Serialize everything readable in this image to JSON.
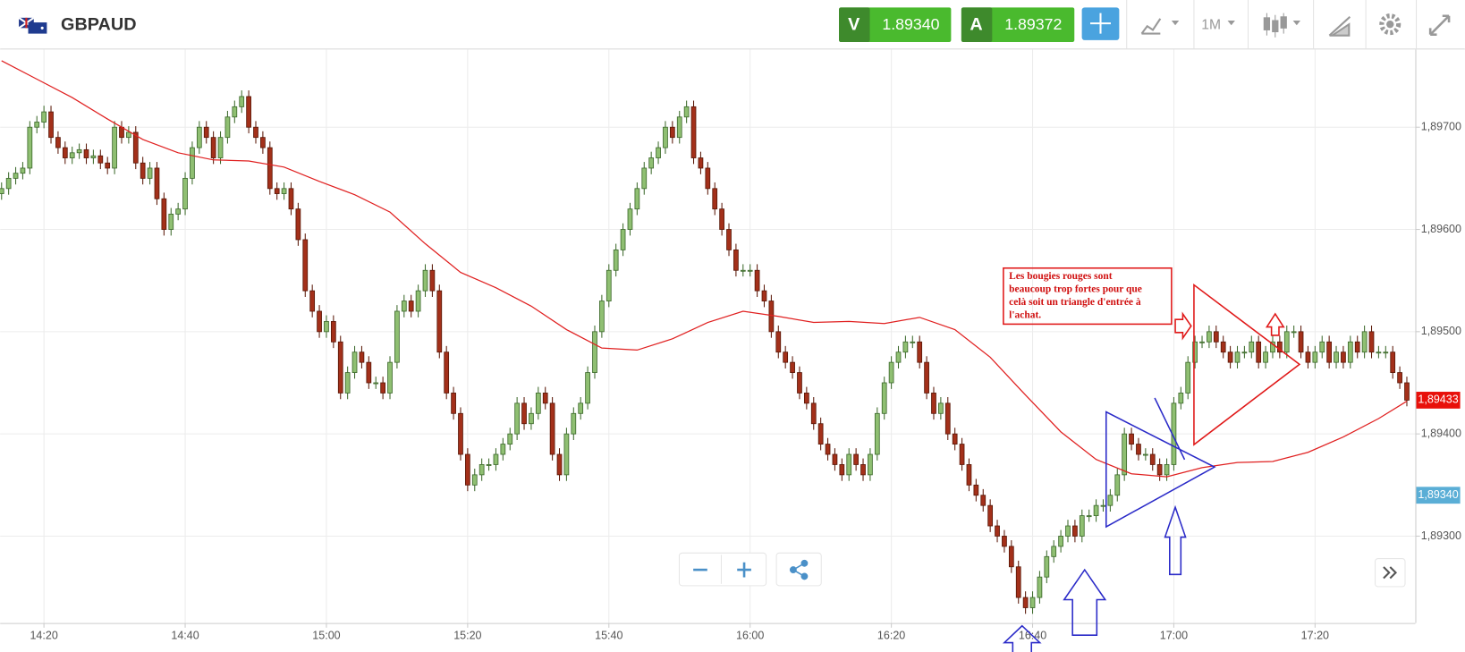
{
  "header": {
    "symbol": "GBPAUD",
    "bid_tag": "V",
    "bid": "1.89340",
    "ask_tag": "A",
    "ask": "1.89372",
    "timeframe": "1M"
  },
  "chart_data": {
    "type": "candlestick",
    "open": [
      1.89635,
      1.8964,
      1.8965,
      1.89655,
      1.8966,
      1.897,
      1.89705,
      1.89715,
      1.8969,
      1.8968,
      1.8967,
      1.89675,
      1.89678,
      1.8967,
      1.89672,
      1.89665,
      1.8966,
      1.897,
      1.8969,
      1.89695,
      1.89665,
      1.8965,
      1.8966,
      1.8963,
      1.896,
      1.89615,
      1.8962,
      1.8965,
      1.8968,
      1.897,
      1.8969,
      1.8967,
      1.8969,
      1.8971,
      1.8972,
      1.8973,
      1.897,
      1.8969,
      1.8968,
      1.8964,
      1.89635,
      1.8964,
      1.8962,
      1.8959,
      1.8954,
      1.8952,
      1.895,
      1.8951,
      1.8949,
      1.8944,
      1.8946,
      1.8948,
      1.8947,
      1.8945,
      1.8945,
      1.8944,
      1.8947,
      1.8952,
      1.8953,
      1.8952,
      1.8954,
      1.8956,
      1.8954,
      1.8948,
      1.8944,
      1.8942,
      1.8938,
      1.8935,
      1.8936,
      1.8937,
      1.8937,
      1.8938,
      1.8939,
      1.894,
      1.8943,
      1.8941,
      1.8942,
      1.8944,
      1.8943,
      1.8938,
      1.8936,
      1.894,
      1.8942,
      1.8943,
      1.8946,
      1.895,
      1.8953,
      1.8956,
      1.8958,
      1.896,
      1.8962,
      1.8964,
      1.8966,
      1.8967,
      1.8968,
      1.897,
      1.8969,
      1.8971,
      1.8972,
      1.8967,
      1.8966,
      1.8964,
      1.8962,
      1.896,
      1.8958,
      1.8956,
      1.8956,
      1.8956,
      1.8954,
      1.8953,
      1.895,
      1.8948,
      1.8947,
      1.8946,
      1.8944,
      1.8943,
      1.8941,
      1.8939,
      1.8938,
      1.8937,
      1.8936,
      1.8938,
      1.8937,
      1.8936,
      1.8938,
      1.8942,
      1.8945,
      1.8947,
      1.8948,
      1.8949,
      1.8949,
      1.8947,
      1.8944,
      1.8942,
      1.8943,
      1.894,
      1.8939,
      1.8937,
      1.8935,
      1.8934,
      1.8933,
      1.8931,
      1.893,
      1.8929,
      1.8927,
      1.8924,
      1.8923,
      1.8924,
      1.8926,
      1.8928,
      1.8929,
      1.893,
      1.8931,
      1.893,
      1.8932,
      1.8932,
      1.8933,
      1.8933,
      1.8934,
      1.8936,
      1.894,
      1.8939,
      1.8938,
      1.8938,
      1.8937,
      1.8936,
      1.8937,
      1.8943,
      1.8944,
      1.8947,
      1.8949,
      1.8949,
      1.895,
      1.8949,
      1.8948,
      1.8947,
      1.8948,
      1.8948,
      1.8949,
      1.8947,
      1.8948,
      1.8949,
      1.8948,
      1.895,
      1.895,
      1.8948,
      1.8947,
      1.8948,
      1.8949,
      1.8947,
      1.8948,
      1.8947,
      1.8949,
      1.8948,
      1.895,
      1.8948,
      1.8948,
      1.8948,
      1.8946,
      1.8945
    ],
    "high": [
      1.89646,
      1.89656,
      1.89661,
      1.89666,
      1.89706,
      1.89711,
      1.89721,
      1.89721,
      1.89696,
      1.89686,
      1.89681,
      1.89684,
      1.89684,
      1.89678,
      1.89678,
      1.89671,
      1.89706,
      1.89706,
      1.89701,
      1.89701,
      1.89671,
      1.89666,
      1.89666,
      1.89636,
      1.89621,
      1.89626,
      1.89656,
      1.89686,
      1.89706,
      1.89706,
      1.89696,
      1.89696,
      1.89716,
      1.89726,
      1.89736,
      1.89736,
      1.89706,
      1.89696,
      1.89686,
      1.89646,
      1.89646,
      1.89646,
      1.89626,
      1.89596,
      1.89546,
      1.89526,
      1.89516,
      1.89516,
      1.89496,
      1.89466,
      1.89486,
      1.89486,
      1.89476,
      1.89456,
      1.89456,
      1.89476,
      1.89526,
      1.89536,
      1.89536,
      1.89546,
      1.89566,
      1.89566,
      1.89546,
      1.89486,
      1.89446,
      1.89426,
      1.89386,
      1.89366,
      1.89376,
      1.89376,
      1.89386,
      1.89396,
      1.89406,
      1.89436,
      1.89436,
      1.89426,
      1.89446,
      1.89446,
      1.89436,
      1.89386,
      1.89406,
      1.89426,
      1.89436,
      1.89466,
      1.89506,
      1.89536,
      1.89566,
      1.89586,
      1.89606,
      1.89626,
      1.89646,
      1.89666,
      1.89676,
      1.89686,
      1.89706,
      1.89706,
      1.89716,
      1.89726,
      1.89726,
      1.89676,
      1.89666,
      1.89646,
      1.89626,
      1.89606,
      1.89586,
      1.89566,
      1.89566,
      1.89566,
      1.89546,
      1.89536,
      1.89506,
      1.89486,
      1.89476,
      1.89466,
      1.89446,
      1.89436,
      1.89416,
      1.89396,
      1.89386,
      1.89376,
      1.89386,
      1.89386,
      1.89376,
      1.89386,
      1.89426,
      1.89456,
      1.89476,
      1.89486,
      1.89496,
      1.89496,
      1.89496,
      1.89476,
      1.89446,
      1.89436,
      1.89436,
      1.89406,
      1.89396,
      1.89376,
      1.89356,
      1.89346,
      1.89336,
      1.89316,
      1.89306,
      1.89296,
      1.89276,
      1.89246,
      1.89246,
      1.89266,
      1.89286,
      1.89296,
      1.89306,
      1.89316,
      1.89316,
      1.89326,
      1.89326,
      1.89336,
      1.89336,
      1.89346,
      1.89366,
      1.89406,
      1.89406,
      1.89396,
      1.89386,
      1.89386,
      1.89376,
      1.89376,
      1.89436,
      1.89446,
      1.89476,
      1.89496,
      1.89496,
      1.89506,
      1.89506,
      1.89496,
      1.89486,
      1.89486,
      1.89486,
      1.89496,
      1.89496,
      1.89486,
      1.89496,
      1.89496,
      1.89506,
      1.89506,
      1.89506,
      1.89486,
      1.89486,
      1.89496,
      1.89496,
      1.89486,
      1.89486,
      1.89496,
      1.89496,
      1.89506,
      1.89506,
      1.89486,
      1.89486,
      1.89486,
      1.89466,
      1.89456
    ],
    "low": [
      1.89629,
      1.89634,
      1.89644,
      1.89649,
      1.89654,
      1.89694,
      1.89699,
      1.89684,
      1.89674,
      1.89664,
      1.89664,
      1.89669,
      1.89664,
      1.89664,
      1.89659,
      1.89654,
      1.89654,
      1.89684,
      1.89684,
      1.89659,
      1.89644,
      1.89644,
      1.89624,
      1.89594,
      1.89594,
      1.89609,
      1.89614,
      1.89644,
      1.89674,
      1.89684,
      1.89664,
      1.89664,
      1.89684,
      1.89704,
      1.89714,
      1.89694,
      1.89684,
      1.89674,
      1.89634,
      1.89629,
      1.89629,
      1.89614,
      1.89584,
      1.89534,
      1.89514,
      1.89494,
      1.89494,
      1.89484,
      1.89434,
      1.89434,
      1.89454,
      1.89464,
      1.89444,
      1.89444,
      1.89434,
      1.89434,
      1.89464,
      1.89514,
      1.89514,
      1.89514,
      1.89534,
      1.89534,
      1.89474,
      1.89434,
      1.89414,
      1.89374,
      1.89344,
      1.89344,
      1.89354,
      1.89364,
      1.89364,
      1.89374,
      1.89384,
      1.89394,
      1.89404,
      1.89404,
      1.89414,
      1.89424,
      1.89374,
      1.89354,
      1.89354,
      1.89394,
      1.89414,
      1.89424,
      1.89454,
      1.89494,
      1.89524,
      1.89554,
      1.89574,
      1.89594,
      1.89614,
      1.89634,
      1.89654,
      1.89664,
      1.89674,
      1.89684,
      1.89684,
      1.89704,
      1.89664,
      1.89654,
      1.89634,
      1.89614,
      1.89594,
      1.89574,
      1.89554,
      1.89554,
      1.89554,
      1.89534,
      1.89524,
      1.89494,
      1.89474,
      1.89464,
      1.89454,
      1.89434,
      1.89424,
      1.89404,
      1.89384,
      1.89374,
      1.89364,
      1.89354,
      1.89354,
      1.89364,
      1.89354,
      1.89354,
      1.89374,
      1.89414,
      1.89444,
      1.89464,
      1.89474,
      1.89484,
      1.89464,
      1.89434,
      1.89414,
      1.89414,
      1.89394,
      1.89384,
      1.89364,
      1.89344,
      1.89334,
      1.89324,
      1.89304,
      1.89294,
      1.89284,
      1.89264,
      1.89234,
      1.89224,
      1.89224,
      1.89234,
      1.89254,
      1.89274,
      1.89284,
      1.89294,
      1.89294,
      1.89294,
      1.89314,
      1.89314,
      1.89324,
      1.89324,
      1.89334,
      1.89354,
      1.89384,
      1.89374,
      1.89374,
      1.89364,
      1.89354,
      1.89354,
      1.89364,
      1.89424,
      1.89434,
      1.89464,
      1.89484,
      1.89484,
      1.89484,
      1.89474,
      1.89464,
      1.89464,
      1.89474,
      1.89474,
      1.89464,
      1.89464,
      1.89474,
      1.89474,
      1.89474,
      1.89494,
      1.89474,
      1.89464,
      1.89464,
      1.89474,
      1.89464,
      1.89464,
      1.89464,
      1.89464,
      1.89474,
      1.89474,
      1.89474,
      1.89474,
      1.89474,
      1.89454,
      1.89444,
      1.89427
    ],
    "close": [
      1.8964,
      1.8965,
      1.89655,
      1.8966,
      1.897,
      1.89705,
      1.89715,
      1.8969,
      1.8968,
      1.8967,
      1.89675,
      1.89678,
      1.8967,
      1.89672,
      1.89665,
      1.8966,
      1.897,
      1.8969,
      1.89695,
      1.89665,
      1.8965,
      1.8966,
      1.8963,
      1.896,
      1.89615,
      1.8962,
      1.8965,
      1.8968,
      1.897,
      1.8969,
      1.8967,
      1.8969,
      1.8971,
      1.8972,
      1.8973,
      1.897,
      1.8969,
      1.8968,
      1.8964,
      1.89635,
      1.8964,
      1.8962,
      1.8959,
      1.8954,
      1.8952,
      1.895,
      1.8951,
      1.8949,
      1.8944,
      1.8946,
      1.8948,
      1.8947,
      1.8945,
      1.8945,
      1.8944,
      1.8947,
      1.8952,
      1.8953,
      1.8952,
      1.8954,
      1.8956,
      1.8954,
      1.8948,
      1.8944,
      1.8942,
      1.8938,
      1.8935,
      1.8936,
      1.8937,
      1.8937,
      1.8938,
      1.8939,
      1.894,
      1.8943,
      1.8941,
      1.8942,
      1.8944,
      1.8943,
      1.8938,
      1.8936,
      1.894,
      1.8942,
      1.8943,
      1.8946,
      1.895,
      1.8953,
      1.8956,
      1.8958,
      1.896,
      1.8962,
      1.8964,
      1.8966,
      1.8967,
      1.8968,
      1.897,
      1.8969,
      1.8971,
      1.8972,
      1.8967,
      1.8966,
      1.8964,
      1.8962,
      1.896,
      1.8958,
      1.8956,
      1.8956,
      1.8956,
      1.8954,
      1.8953,
      1.895,
      1.8948,
      1.8947,
      1.8946,
      1.8944,
      1.8943,
      1.8941,
      1.8939,
      1.8938,
      1.8937,
      1.8936,
      1.8938,
      1.8937,
      1.8936,
      1.8938,
      1.8942,
      1.8945,
      1.8947,
      1.8948,
      1.8949,
      1.8949,
      1.8947,
      1.8944,
      1.8942,
      1.8943,
      1.894,
      1.8939,
      1.8937,
      1.8935,
      1.8934,
      1.8933,
      1.8931,
      1.893,
      1.8929,
      1.8927,
      1.8924,
      1.8923,
      1.8924,
      1.8926,
      1.8928,
      1.8929,
      1.893,
      1.8931,
      1.893,
      1.8932,
      1.8932,
      1.8933,
      1.8933,
      1.8934,
      1.8936,
      1.894,
      1.8939,
      1.8938,
      1.8938,
      1.8937,
      1.8936,
      1.8937,
      1.8943,
      1.8944,
      1.8947,
      1.8949,
      1.8949,
      1.895,
      1.8949,
      1.8948,
      1.8947,
      1.8948,
      1.8948,
      1.8949,
      1.8947,
      1.8948,
      1.8949,
      1.8948,
      1.895,
      1.895,
      1.8948,
      1.8947,
      1.8948,
      1.8949,
      1.8947,
      1.8948,
      1.8947,
      1.8949,
      1.8948,
      1.895,
      1.8948,
      1.8948,
      1.8948,
      1.8946,
      1.8945,
      1.89433
    ],
    "up_color": "#8fbf72",
    "down_color": "#a3301a",
    "moving_average": {
      "color": "#e02020",
      "x": [
        0,
        5,
        10,
        15,
        20,
        25,
        30,
        35,
        40,
        45,
        50,
        55,
        60,
        65,
        70,
        75,
        80,
        85,
        90,
        95,
        100,
        105,
        110,
        115,
        120,
        125,
        130,
        135,
        140,
        145,
        150,
        155,
        160,
        165,
        170,
        175,
        180,
        185,
        190,
        195,
        199
      ],
      "values": [
        1.89765,
        1.89747,
        1.89729,
        1.89708,
        1.89688,
        1.89675,
        1.89668,
        1.89667,
        1.89661,
        1.89647,
        1.89634,
        1.89617,
        1.89586,
        1.89558,
        1.89543,
        1.89525,
        1.89502,
        1.89484,
        1.89482,
        1.89493,
        1.89509,
        1.8952,
        1.89515,
        1.89509,
        1.8951,
        1.89508,
        1.89514,
        1.89502,
        1.89475,
        1.89438,
        1.89402,
        1.89375,
        1.89361,
        1.89358,
        1.89367,
        1.89372,
        1.89373,
        1.89382,
        1.89397,
        1.89415,
        1.89432
      ]
    },
    "ylim": [
      1.89215,
      1.89776
    ],
    "yticks": [
      {
        "value": 1.893,
        "label": "1,89300"
      },
      {
        "value": 1.894,
        "label": "1,89400"
      },
      {
        "value": 1.895,
        "label": "1,89500"
      },
      {
        "value": 1.896,
        "label": "1,89600"
      },
      {
        "value": 1.897,
        "label": "1,89700"
      }
    ],
    "xlim": [
      -0.2,
      200.2
    ],
    "xticks": [
      {
        "value": 6,
        "label": "14:20"
      },
      {
        "value": 26,
        "label": "14:40"
      },
      {
        "value": 46,
        "label": "15:00"
      },
      {
        "value": 66,
        "label": "15:20"
      },
      {
        "value": 86,
        "label": "15:40"
      },
      {
        "value": 106,
        "label": "16:00"
      },
      {
        "value": 126,
        "label": "16:20"
      },
      {
        "value": 146,
        "label": "16:40"
      },
      {
        "value": 166,
        "label": "17:00"
      },
      {
        "value": 186,
        "label": "17:20"
      }
    ],
    "grid": true,
    "last_price": {
      "value": 1.89433,
      "label": "1,89433",
      "color": "#e8100a"
    },
    "bid_price": {
      "value": 1.8934,
      "label": "1,89340",
      "color": "#5aaed6"
    },
    "annotations": [
      "Les bougies rouges sont",
      "beaucoup trop fortes pour que",
      "celà soit un triangle d'entrée à",
      "l'achat."
    ]
  }
}
